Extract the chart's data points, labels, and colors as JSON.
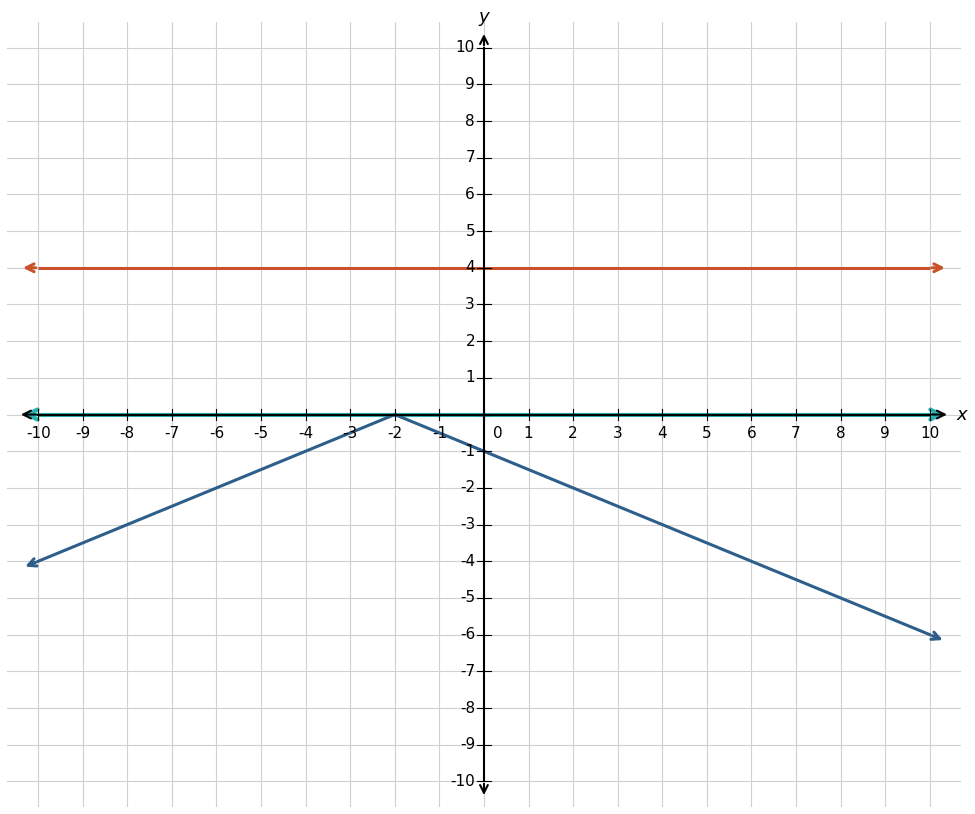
{
  "xlim": [
    -10.7,
    10.7
  ],
  "ylim": [
    -10.7,
    10.7
  ],
  "plot_min": -10,
  "plot_max": 10,
  "xticks_with_zero": [
    -10,
    -9,
    -8,
    -7,
    -6,
    -5,
    -4,
    -3,
    -2,
    -1,
    0,
    1,
    2,
    3,
    4,
    5,
    6,
    7,
    8,
    9,
    10
  ],
  "xticks_no_zero": [
    -10,
    -9,
    -8,
    -7,
    -6,
    -5,
    -4,
    -3,
    -2,
    -1,
    1,
    2,
    3,
    4,
    5,
    6,
    7,
    8,
    9,
    10
  ],
  "yticks_no_zero": [
    -10,
    -9,
    -8,
    -7,
    -6,
    -5,
    -4,
    -3,
    -2,
    -1,
    1,
    2,
    3,
    4,
    5,
    6,
    7,
    8,
    9,
    10
  ],
  "abs_color": "#2d5f8a",
  "horizontal_color": "#c8522a",
  "xaxis_color": "#2ab0b0",
  "axis_color": "#000000",
  "abs_linewidth": 2.2,
  "horiz_linewidth": 2.2,
  "xaxis_linewidth": 3.0,
  "axis_linewidth": 1.5,
  "grid_color": "#d0d0d0",
  "grid_linewidth": 0.8,
  "background_color": "#ffffff",
  "xlabel": "x",
  "ylabel": "y",
  "label_fontsize": 13,
  "tick_fontsize": 11,
  "arrow_ext": 0.45,
  "arrowhead_scale": 14
}
